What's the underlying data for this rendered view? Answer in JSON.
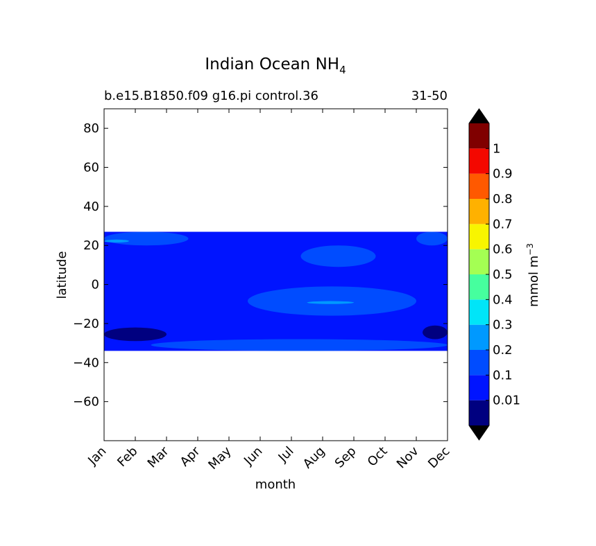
{
  "chart_data": {
    "type": "heatmap",
    "title": "Indian Ocean NH",
    "title_subscript": "4",
    "subtitle_left": "b.e15.B1850.f09 g16.pi control.36",
    "subtitle_right": "31-50",
    "xlabel": "month",
    "ylabel": "latitude",
    "x_categories": [
      "Jan",
      "Feb",
      "Mar",
      "Apr",
      "May",
      "Jun",
      "Jul",
      "Aug",
      "Sep",
      "Oct",
      "Nov",
      "Dec"
    ],
    "ylim": [
      -80,
      90
    ],
    "y_ticks": [
      80,
      60,
      40,
      20,
      0,
      -20,
      -40,
      -60
    ],
    "y_tick_labels": [
      "80",
      "60",
      "40",
      "20",
      "0",
      "−20",
      "−40",
      "−60"
    ],
    "data_lat_range": [
      -34,
      27
    ],
    "background_level_color": "#0014ff",
    "regions": [
      {
        "name": "high-lat-band",
        "level": "0.1-0.2",
        "color": "#004cff",
        "lat": [
          20,
          27
        ],
        "months": [
          0,
          2.7
        ]
      },
      {
        "name": "south-band",
        "level": "0.1-0.2",
        "color": "#004cff",
        "lat": [
          -34,
          -28
        ],
        "months": [
          1.5,
          11
        ]
      },
      {
        "name": "equatorial-patch",
        "level": "0.1-0.2",
        "color": "#004cff",
        "lat": [
          -16,
          -1
        ],
        "months": [
          4.6,
          10
        ]
      },
      {
        "name": "north-patch",
        "level": "0.1-0.2",
        "color": "#004cff",
        "lat": [
          9,
          20
        ],
        "months": [
          6.3,
          8.7
        ]
      },
      {
        "name": "dec-north",
        "level": "0.1-0.2",
        "color": "#004cff",
        "lat": [
          20,
          27
        ],
        "months": [
          10,
          11
        ]
      },
      {
        "name": "sw-low",
        "level": "0.01-0.1",
        "color": "#000080",
        "lat": [
          -29,
          -22
        ],
        "months": [
          0,
          2
        ]
      },
      {
        "name": "se-low",
        "level": "0.01-0.1",
        "color": "#000080",
        "lat": [
          -28,
          -21
        ],
        "months": [
          10.2,
          11
        ]
      },
      {
        "name": "jan-hot",
        "level": "0.2-0.3",
        "color": "#0099ff",
        "lat": [
          21.5,
          23
        ],
        "months": [
          0,
          0.8
        ]
      },
      {
        "name": "aug-hot",
        "level": "0.2-0.3",
        "color": "#0099ff",
        "lat": [
          -10,
          -8.5
        ],
        "months": [
          6.5,
          8.0
        ]
      }
    ],
    "colorbar": {
      "label": "mmol m",
      "label_superscript": "−3",
      "tick_labels": [
        "0.01",
        "0.1",
        "0.2",
        "0.3",
        "0.4",
        "0.5",
        "0.6",
        "0.7",
        "0.8",
        "0.9",
        "1"
      ],
      "colors": [
        "#000080",
        "#0014ff",
        "#004cff",
        "#0099ff",
        "#00e5f8",
        "#46ff9e",
        "#a4ff53",
        "#f8f500",
        "#ffb100",
        "#ff5900",
        "#f40800",
        "#800000"
      ],
      "extend_color": "#000000"
    }
  }
}
